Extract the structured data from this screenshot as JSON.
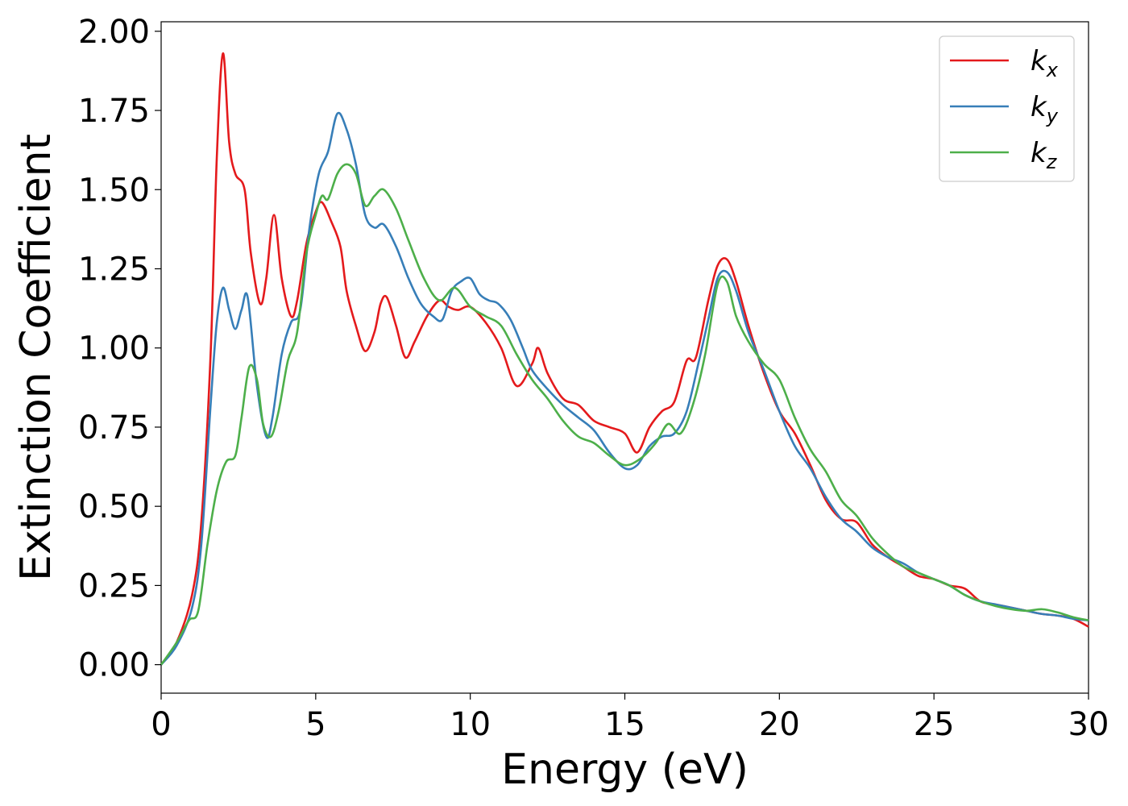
{
  "chart_data": {
    "type": "line",
    "title": "",
    "xlabel": "Energy (eV)",
    "ylabel": "Extinction Coefficient",
    "xlim": [
      0,
      30
    ],
    "ylim": [
      -0.09,
      2.03
    ],
    "xticks": [
      0,
      5,
      10,
      15,
      20,
      25,
      30
    ],
    "xtick_labels": [
      "0",
      "5",
      "10",
      "15",
      "20",
      "25",
      "30"
    ],
    "yticks": [
      0,
      0.25,
      0.5,
      0.75,
      1.0,
      1.25,
      1.5,
      1.75,
      2.0
    ],
    "ytick_labels": [
      "0.00",
      "0.25",
      "0.50",
      "0.75",
      "1.00",
      "1.25",
      "1.50",
      "1.75",
      "2.00"
    ],
    "grid": false,
    "legend_position": "top-right",
    "series": [
      {
        "name": "k",
        "subscript": "x",
        "color": "#e41a1c",
        "x": [
          0,
          0.5,
          1.0,
          1.3,
          1.6,
          1.8,
          2.0,
          2.2,
          2.4,
          2.7,
          2.9,
          3.2,
          3.4,
          3.65,
          3.9,
          4.2,
          4.4,
          4.7,
          5.0,
          5.2,
          5.5,
          5.8,
          6.0,
          6.3,
          6.6,
          6.9,
          7.1,
          7.3,
          7.6,
          7.9,
          8.2,
          8.6,
          9.0,
          9.3,
          9.6,
          10.0,
          10.5,
          11.0,
          11.5,
          12.0,
          12.2,
          12.5,
          13.0,
          13.5,
          14.0,
          14.5,
          15.0,
          15.4,
          15.8,
          16.2,
          16.6,
          17.0,
          17.3,
          17.7,
          18.0,
          18.3,
          18.6,
          19.0,
          19.5,
          20.0,
          20.5,
          21.0,
          21.5,
          22.0,
          22.5,
          23.0,
          23.5,
          24.0,
          24.5,
          25.0,
          25.5,
          26.0,
          26.5,
          27.0,
          27.5,
          28.0,
          28.5,
          29.0,
          29.5,
          30.0
        ],
        "y": [
          0.0,
          0.07,
          0.22,
          0.45,
          0.98,
          1.6,
          1.93,
          1.65,
          1.55,
          1.5,
          1.3,
          1.14,
          1.22,
          1.42,
          1.22,
          1.1,
          1.15,
          1.33,
          1.43,
          1.46,
          1.4,
          1.32,
          1.18,
          1.07,
          0.99,
          1.05,
          1.14,
          1.16,
          1.07,
          0.97,
          1.02,
          1.1,
          1.15,
          1.13,
          1.12,
          1.13,
          1.08,
          1.0,
          0.88,
          0.95,
          1.0,
          0.92,
          0.84,
          0.82,
          0.77,
          0.75,
          0.73,
          0.67,
          0.75,
          0.8,
          0.83,
          0.96,
          0.97,
          1.15,
          1.26,
          1.28,
          1.21,
          1.07,
          0.92,
          0.8,
          0.73,
          0.63,
          0.52,
          0.46,
          0.45,
          0.38,
          0.34,
          0.31,
          0.28,
          0.27,
          0.25,
          0.24,
          0.2,
          0.19,
          0.18,
          0.17,
          0.16,
          0.155,
          0.145,
          0.12
        ]
      },
      {
        "name": "k",
        "subscript": "y",
        "color": "#377eb8",
        "x": [
          0,
          0.5,
          1.0,
          1.3,
          1.6,
          1.8,
          2.0,
          2.2,
          2.4,
          2.6,
          2.8,
          3.1,
          3.4,
          3.6,
          3.9,
          4.2,
          4.5,
          4.8,
          5.1,
          5.4,
          5.7,
          6.0,
          6.3,
          6.6,
          6.9,
          7.2,
          7.6,
          8.0,
          8.4,
          8.8,
          9.1,
          9.4,
          9.7,
          10.0,
          10.3,
          10.6,
          10.9,
          11.3,
          11.7,
          12.0,
          12.5,
          13.0,
          13.5,
          14.0,
          14.5,
          15.0,
          15.4,
          15.8,
          16.2,
          16.6,
          17.0,
          17.4,
          17.7,
          18.0,
          18.3,
          18.6,
          19.0,
          19.5,
          20.0,
          20.5,
          21.0,
          21.5,
          22.0,
          22.5,
          23.0,
          23.5,
          24.0,
          24.5,
          25.0,
          25.5,
          26.0,
          26.5,
          27.0,
          27.5,
          28.0,
          28.5,
          29.0,
          29.5,
          30.0
        ],
        "y": [
          0.0,
          0.06,
          0.18,
          0.38,
          0.82,
          1.08,
          1.19,
          1.12,
          1.06,
          1.12,
          1.16,
          0.88,
          0.72,
          0.78,
          0.98,
          1.08,
          1.12,
          1.38,
          1.55,
          1.62,
          1.74,
          1.69,
          1.58,
          1.42,
          1.38,
          1.39,
          1.32,
          1.22,
          1.14,
          1.1,
          1.09,
          1.18,
          1.21,
          1.22,
          1.17,
          1.15,
          1.14,
          1.09,
          1.0,
          0.93,
          0.87,
          0.82,
          0.78,
          0.74,
          0.67,
          0.62,
          0.63,
          0.69,
          0.72,
          0.73,
          0.8,
          0.96,
          1.09,
          1.22,
          1.24,
          1.18,
          1.05,
          0.93,
          0.8,
          0.69,
          0.62,
          0.53,
          0.46,
          0.42,
          0.37,
          0.34,
          0.32,
          0.29,
          0.27,
          0.25,
          0.22,
          0.2,
          0.19,
          0.18,
          0.17,
          0.16,
          0.155,
          0.145,
          0.14
        ]
      },
      {
        "name": "k",
        "subscript": "z",
        "color": "#4daf4a",
        "x": [
          0,
          0.5,
          0.9,
          1.2,
          1.5,
          1.8,
          2.1,
          2.4,
          2.6,
          2.85,
          3.1,
          3.3,
          3.55,
          3.8,
          4.1,
          4.4,
          4.7,
          5.0,
          5.2,
          5.4,
          5.7,
          6.0,
          6.3,
          6.6,
          6.9,
          7.2,
          7.6,
          8.0,
          8.5,
          9.0,
          9.5,
          10.0,
          10.5,
          11.0,
          11.5,
          12.0,
          12.5,
          13.0,
          13.5,
          14.0,
          14.5,
          15.0,
          15.5,
          16.0,
          16.4,
          16.8,
          17.2,
          17.6,
          18.0,
          18.3,
          18.6,
          19.0,
          19.5,
          20.0,
          20.5,
          21.0,
          21.5,
          22.0,
          22.5,
          23.0,
          23.5,
          24.0,
          24.5,
          25.0,
          25.5,
          26.0,
          26.5,
          27.0,
          27.5,
          28.0,
          28.5,
          29.0,
          29.5,
          30.0
        ],
        "y": [
          0.0,
          0.07,
          0.14,
          0.17,
          0.38,
          0.55,
          0.64,
          0.66,
          0.78,
          0.94,
          0.9,
          0.76,
          0.72,
          0.8,
          0.96,
          1.05,
          1.3,
          1.42,
          1.48,
          1.47,
          1.55,
          1.58,
          1.55,
          1.45,
          1.48,
          1.5,
          1.44,
          1.34,
          1.22,
          1.15,
          1.19,
          1.13,
          1.1,
          1.07,
          0.98,
          0.9,
          0.84,
          0.77,
          0.72,
          0.7,
          0.66,
          0.63,
          0.65,
          0.7,
          0.76,
          0.73,
          0.82,
          0.98,
          1.2,
          1.21,
          1.1,
          1.02,
          0.95,
          0.9,
          0.78,
          0.68,
          0.61,
          0.52,
          0.47,
          0.4,
          0.35,
          0.31,
          0.29,
          0.27,
          0.25,
          0.22,
          0.2,
          0.185,
          0.175,
          0.17,
          0.175,
          0.165,
          0.15,
          0.14
        ]
      }
    ]
  }
}
